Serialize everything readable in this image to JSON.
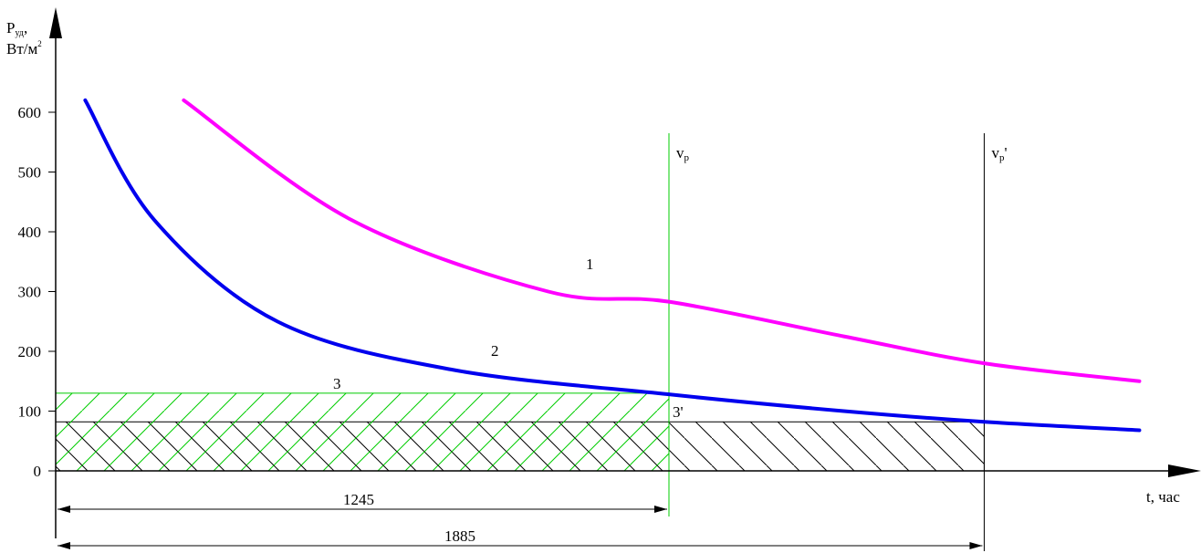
{
  "chart_data": {
    "type": "line",
    "y_axis": {
      "label_main": "P",
      "label_sub": "уд",
      "label_units": "Вт/м",
      "label_sup": "2",
      "ticks": [
        0,
        100,
        200,
        300,
        400,
        500,
        600
      ],
      "ylim": [
        0,
        700
      ]
    },
    "x_axis": {
      "label": "t, час"
    },
    "series": [
      {
        "name": "1",
        "color": "#ff00ff",
        "points": [
          [
            260,
            620
          ],
          [
            600,
            420
          ],
          [
            1000,
            300
          ],
          [
            1245,
            283
          ],
          [
            1600,
            225
          ],
          [
            1885,
            180
          ],
          [
            2200,
            150
          ]
        ]
      },
      {
        "name": "2",
        "color": "#0000ee",
        "points": [
          [
            60,
            620
          ],
          [
            200,
            420
          ],
          [
            450,
            250
          ],
          [
            800,
            170
          ],
          [
            1245,
            128
          ],
          [
            1600,
            100
          ],
          [
            1885,
            82
          ],
          [
            2200,
            68
          ]
        ]
      }
    ],
    "regions": [
      {
        "name": "3",
        "y_top": 130,
        "x_end": 1245,
        "color": "#00cc00"
      },
      {
        "name": "3'",
        "y_top": 82,
        "x_end": 1885,
        "color": "#000000"
      }
    ],
    "vertical_lines": [
      {
        "label_main": "v",
        "label_sub": "p",
        "label_suffix": "",
        "x": 1245,
        "color": "#00cc00"
      },
      {
        "label_main": "v",
        "label_sub": "p",
        "label_suffix": "'",
        "x": 1885,
        "color": "#000000"
      }
    ],
    "dimensions": [
      {
        "label": "1245",
        "from": 0,
        "to": 1245
      },
      {
        "label": "1885",
        "from": 0,
        "to": 1885
      }
    ]
  }
}
